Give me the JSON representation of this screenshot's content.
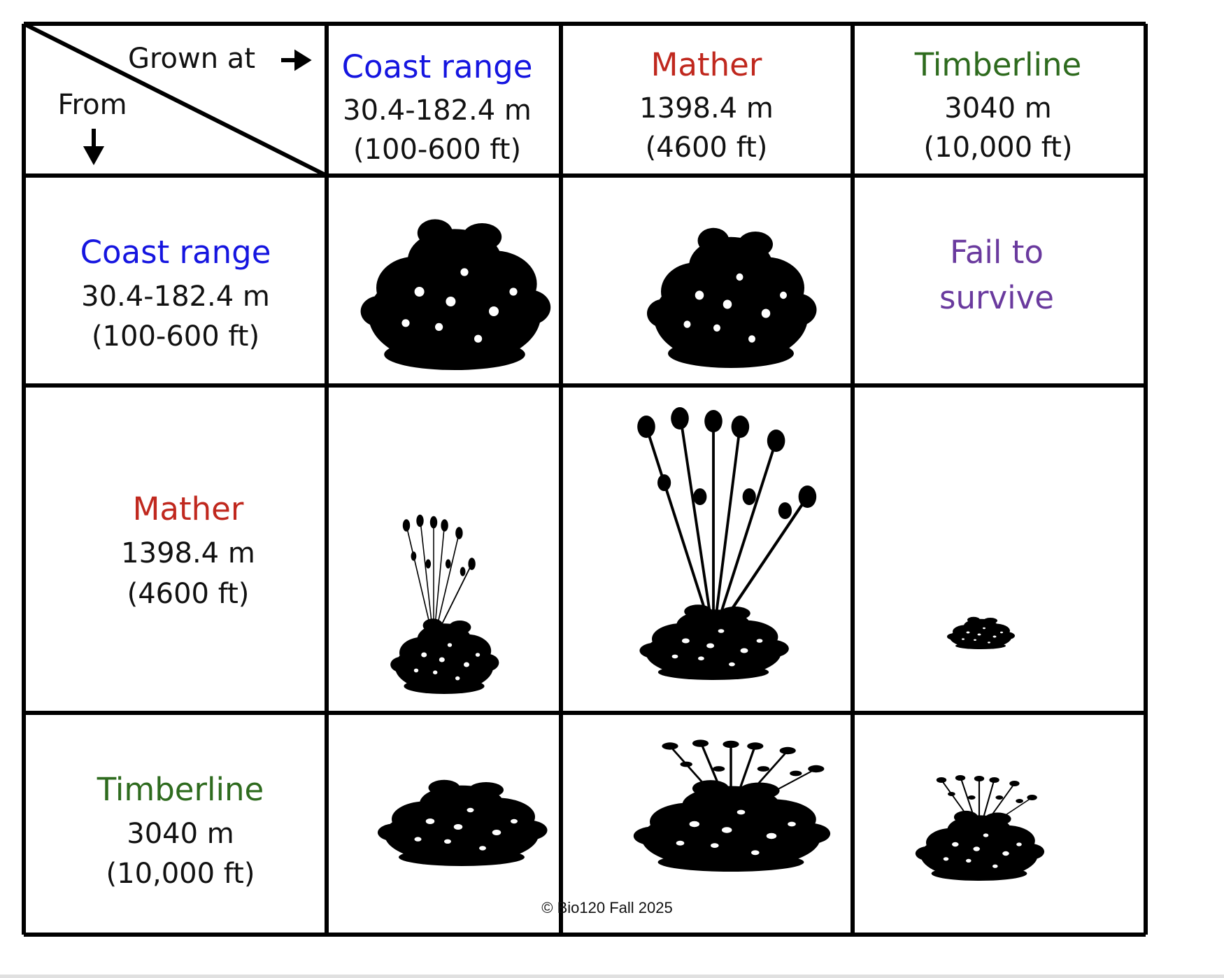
{
  "corner": {
    "grown_at": "Grown at",
    "from": "From"
  },
  "columns": [
    {
      "name": "Coast range",
      "meters": "30.4-182.4 m",
      "feet": "(100-600 ft)"
    },
    {
      "name": "Mather",
      "meters": "1398.4 m",
      "feet": "(4600 ft)"
    },
    {
      "name": "Timberline",
      "meters": "3040 m",
      "feet": "(10,000 ft)"
    }
  ],
  "rows": [
    {
      "name": "Coast range",
      "meters": "30.4-182.4 m",
      "feet": "(100-600 ft)"
    },
    {
      "name": "Mather",
      "meters": "1398.4 m",
      "feet": "(4600 ft)"
    },
    {
      "name": "Timberline",
      "meters": "3040 m",
      "feet": "(10,000 ft)"
    }
  ],
  "cells": {
    "coast_timberline": [
      "Fail to",
      "survive"
    ]
  },
  "footer": "© Bio120 Fall 2025"
}
